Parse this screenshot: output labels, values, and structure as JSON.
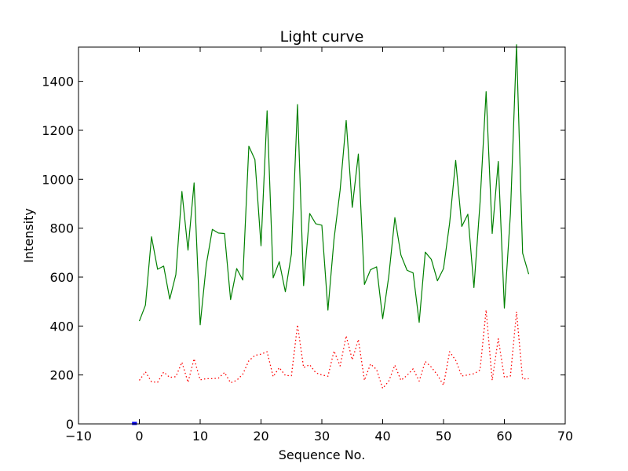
{
  "chart_data": {
    "type": "line",
    "title": "Light curve",
    "xlabel": "Sequence No.",
    "ylabel": "Intensity",
    "xlim": [
      -10,
      70
    ],
    "ylim": [
      0,
      1540
    ],
    "xticks": [
      -10,
      0,
      10,
      20,
      30,
      40,
      50,
      60,
      70
    ],
    "yticks": [
      0,
      200,
      400,
      600,
      800,
      1000,
      1200,
      1400
    ],
    "grid": false,
    "legend": "none",
    "series": [
      {
        "color": "#008000",
        "style": "solid",
        "x": [
          0,
          1,
          2,
          3,
          4,
          5,
          6,
          7,
          8,
          9,
          10,
          11,
          12,
          13,
          14,
          15,
          16,
          17,
          18,
          19,
          20,
          21,
          22,
          23,
          24,
          25,
          26,
          27,
          28,
          29,
          30,
          31,
          32,
          33,
          34,
          35,
          36,
          37,
          38,
          39,
          40,
          41,
          42,
          43,
          44,
          45,
          46,
          47,
          48,
          49,
          50,
          51,
          52,
          53,
          54,
          55,
          56,
          57,
          58,
          59,
          60,
          61,
          62,
          63,
          64
        ],
        "values": [
          420,
          485,
          765,
          632,
          645,
          510,
          610,
          950,
          710,
          985,
          405,
          650,
          795,
          780,
          778,
          508,
          635,
          588,
          1135,
          1080,
          728,
          1280,
          597,
          663,
          540,
          695,
          1305,
          565,
          860,
          818,
          812,
          465,
          755,
          955,
          1240,
          885,
          1103,
          570,
          630,
          642,
          430,
          603,
          843,
          690,
          628,
          617,
          415,
          702,
          672,
          585,
          635,
          820,
          1077,
          807,
          857,
          557,
          903,
          1358,
          778,
          1073,
          473,
          860,
          1550,
          698,
          612
        ]
      },
      {
        "color": "#ff0000",
        "style": "dotted",
        "x": [
          0,
          1,
          2,
          3,
          4,
          5,
          6,
          7,
          8,
          9,
          10,
          11,
          12,
          13,
          14,
          15,
          16,
          17,
          18,
          19,
          20,
          21,
          22,
          23,
          24,
          25,
          26,
          27,
          28,
          29,
          30,
          31,
          32,
          33,
          34,
          35,
          36,
          37,
          38,
          39,
          40,
          41,
          42,
          43,
          44,
          45,
          46,
          47,
          48,
          49,
          50,
          51,
          52,
          53,
          54,
          55,
          56,
          57,
          58,
          59,
          60,
          61,
          62,
          63,
          64
        ],
        "values": [
          178,
          213,
          172,
          170,
          212,
          190,
          193,
          252,
          170,
          266,
          180,
          185,
          185,
          187,
          210,
          168,
          178,
          203,
          258,
          280,
          285,
          295,
          193,
          230,
          198,
          197,
          405,
          230,
          242,
          209,
          200,
          195,
          298,
          237,
          360,
          262,
          345,
          178,
          245,
          222,
          145,
          175,
          240,
          178,
          198,
          225,
          175,
          255,
          232,
          200,
          158,
          295,
          260,
          196,
          200,
          205,
          220,
          465,
          178,
          348,
          190,
          196,
          458,
          183,
          185
        ]
      },
      {
        "color": "#0000ff",
        "style": "solid",
        "x": [
          -1.2,
          -0.4
        ],
        "values": [
          2,
          2
        ]
      }
    ]
  }
}
